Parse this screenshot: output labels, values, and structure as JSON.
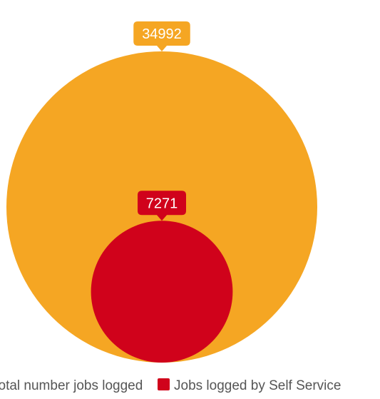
{
  "chart_data": {
    "type": "bubble",
    "series": [
      {
        "name": "Total number jobs logged",
        "value": 34992,
        "color": "#F5A623"
      },
      {
        "name": "Jobs logged by Self Service",
        "value": 7271,
        "color": "#D0021B"
      }
    ],
    "legend": {
      "position": "bottom",
      "items": [
        {
          "label": "Total number jobs logged",
          "color": "#F5A623"
        },
        {
          "label": "Jobs logged by Self Service",
          "color": "#D0021B"
        }
      ]
    }
  }
}
